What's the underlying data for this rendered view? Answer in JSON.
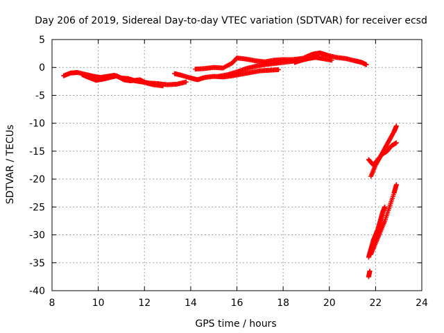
{
  "chart_data": {
    "type": "scatter",
    "title": "Day 206 of 2019, Sidereal Day-to-day VTEC variation (SDTVAR) for receiver ecsd",
    "xlabel": "GPS time / hours",
    "ylabel": "SDTVAR / TECUs",
    "xlim": [
      8,
      24
    ],
    "ylim": [
      -40,
      5
    ],
    "xticks": [
      8,
      10,
      12,
      14,
      16,
      18,
      20,
      22,
      24
    ],
    "yticks": [
      5,
      0,
      -5,
      -10,
      -15,
      -20,
      -25,
      -30,
      -35,
      -40
    ],
    "grid": true,
    "marker": "+",
    "color": "#ff0000",
    "series": [
      {
        "name": "band-early",
        "x": [
          8.5,
          8.8,
          9.1,
          9.5,
          9.8,
          10.1,
          10.4,
          10.7,
          11.0,
          11.3,
          11.6,
          11.9,
          12.2,
          12.6,
          13.0,
          13.4,
          13.8
        ],
        "y": [
          -1.5,
          -1.0,
          -0.9,
          -1.3,
          -1.6,
          -1.8,
          -1.6,
          -1.4,
          -1.9,
          -2.0,
          -2.4,
          -2.6,
          -2.8,
          -2.9,
          -3.1,
          -3.0,
          -2.6
        ]
      },
      {
        "name": "band-early-lower",
        "x": [
          9.3,
          9.6,
          9.9,
          10.2,
          10.5,
          10.8,
          11.1,
          11.4,
          11.8,
          12.1,
          12.4,
          12.8
        ],
        "y": [
          -1.3,
          -1.8,
          -2.3,
          -2.1,
          -1.8,
          -1.5,
          -2.2,
          -2.4,
          -2.2,
          -2.8,
          -3.1,
          -3.3
        ]
      },
      {
        "name": "band-mid",
        "x": [
          13.3,
          13.6,
          14.0,
          14.3,
          14.6,
          15.0,
          15.4,
          15.8,
          16.2,
          16.6,
          17.0,
          17.4,
          17.8
        ],
        "y": [
          -1.1,
          -1.4,
          -1.9,
          -2.2,
          -1.8,
          -1.6,
          -1.7,
          -1.5,
          -1.2,
          -0.9,
          -0.6,
          -0.5,
          -0.4
        ]
      },
      {
        "name": "band-mid-upper",
        "x": [
          14.2,
          14.6,
          15.0,
          15.4,
          15.8,
          16.0,
          16.4,
          16.8,
          17.2,
          17.6,
          18.0,
          18.4,
          18.8
        ],
        "y": [
          -0.3,
          -0.2,
          0.0,
          -0.1,
          0.8,
          1.7,
          1.5,
          1.2,
          1.0,
          1.3,
          1.4,
          1.4,
          1.6
        ]
      },
      {
        "name": "band-mid-lower",
        "x": [
          15.2,
          15.6,
          16.0,
          16.4,
          16.8,
          17.2,
          17.6,
          18.0,
          18.4,
          18.8
        ],
        "y": [
          -1.6,
          -1.3,
          -0.8,
          -0.2,
          0.2,
          0.5,
          0.7,
          0.9,
          1.1,
          1.3
        ]
      },
      {
        "name": "band-late",
        "x": [
          18.6,
          19.0,
          19.3,
          19.6,
          19.9,
          20.3,
          20.7,
          21.1,
          21.4,
          21.6
        ],
        "y": [
          1.2,
          1.9,
          2.4,
          2.6,
          2.2,
          1.8,
          1.6,
          1.2,
          0.9,
          0.5
        ]
      },
      {
        "name": "band-late-lower",
        "x": [
          18.5,
          18.8,
          19.1,
          19.4,
          19.7,
          20.1
        ],
        "y": [
          0.9,
          1.3,
          1.6,
          1.8,
          1.6,
          1.3
        ]
      },
      {
        "name": "end-upper-a",
        "x": [
          21.8,
          22.0,
          22.2,
          22.4,
          22.6,
          22.8,
          22.9
        ],
        "y": [
          -19.5,
          -17.5,
          -16.0,
          -14.5,
          -13.0,
          -11.5,
          -10.5
        ]
      },
      {
        "name": "end-upper-b",
        "x": [
          21.7,
          21.9,
          22.1,
          22.3,
          22.5,
          22.7,
          22.9
        ],
        "y": [
          -16.5,
          -17.5,
          -16.5,
          -15.5,
          -15.0,
          -14.0,
          -13.5
        ]
      },
      {
        "name": "end-lower-a",
        "x": [
          21.7,
          21.8,
          21.9,
          22.0,
          22.1,
          22.2,
          22.3,
          22.4
        ],
        "y": [
          -34.0,
          -32.5,
          -31.0,
          -30.0,
          -29.0,
          -27.5,
          -26.0,
          -25.0
        ]
      },
      {
        "name": "end-lower-b",
        "x": [
          21.8,
          22.0,
          22.2,
          22.4,
          22.6,
          22.8,
          22.9
        ],
        "y": [
          -33.5,
          -31.5,
          -29.5,
          -27.5,
          -25.0,
          -22.5,
          -21.0
        ]
      },
      {
        "name": "end-tail",
        "x": [
          21.7,
          21.75
        ],
        "y": [
          -37.5,
          -36.5
        ]
      }
    ]
  }
}
